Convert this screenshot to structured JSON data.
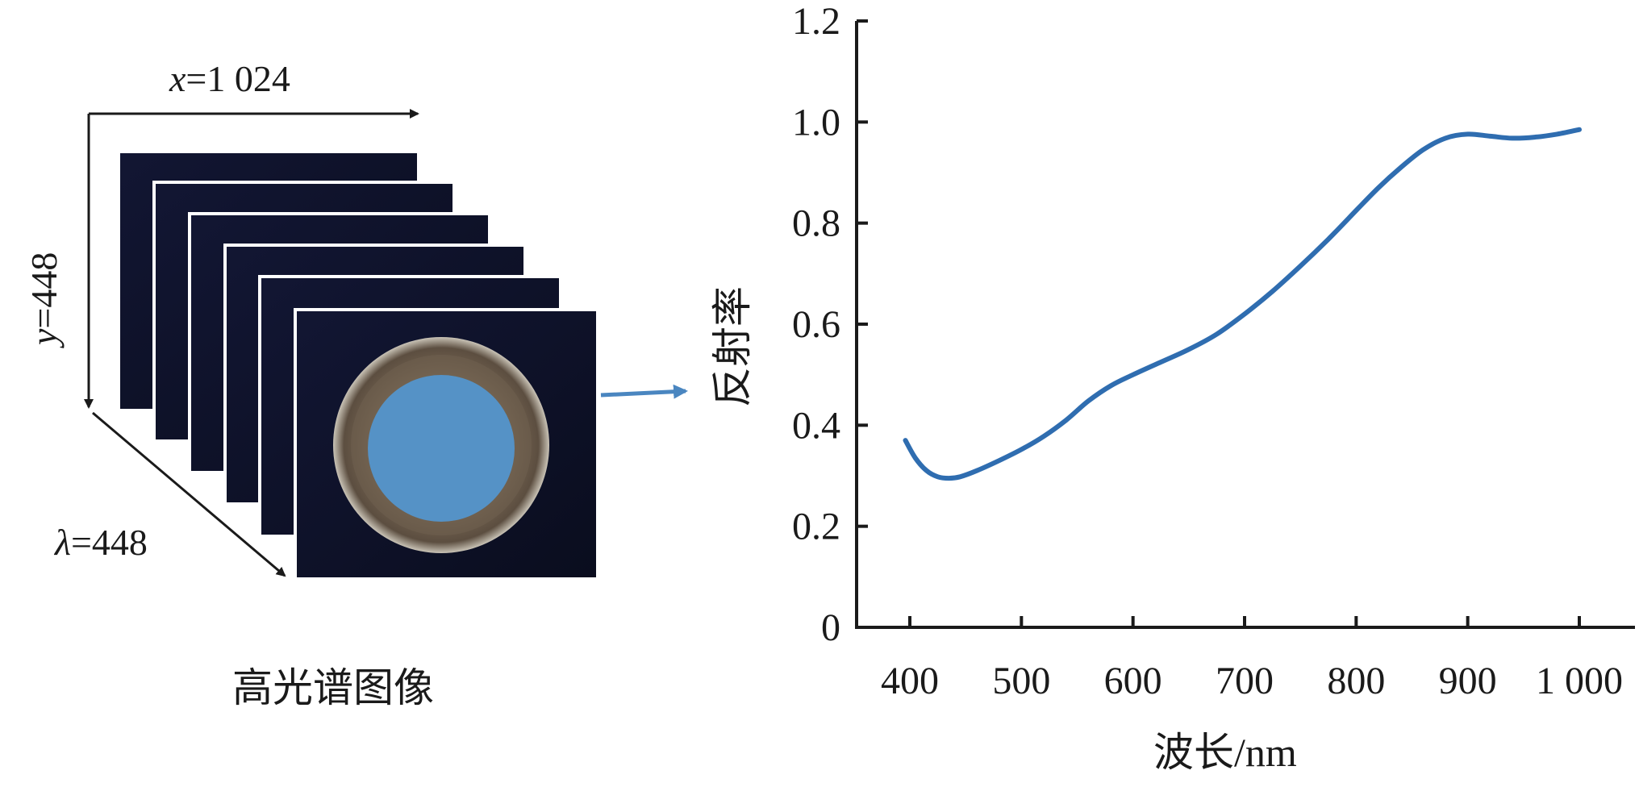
{
  "diagram": {
    "x_label_var": "x",
    "x_label_value": "=1 024",
    "y_label_var": "y",
    "y_label_value": "=448",
    "lambda_label_var": "λ",
    "lambda_label_value": "=448",
    "caption": "高光谱图像",
    "colors": {
      "frame": "#0c0f22",
      "ring": "#6e5f4e",
      "ring_edge": "#c8c2b4",
      "center": "#5592c6",
      "arrow": "#4a86c0"
    }
  },
  "chart_data": {
    "type": "line",
    "xlabel": "波长/nm",
    "ylabel": "反射率",
    "xlim": [
      350,
      1050
    ],
    "ylim": [
      0,
      1.2
    ],
    "x_ticks": [
      400,
      500,
      600,
      700,
      800,
      900,
      1000
    ],
    "x_tick_labels": [
      "400",
      "500",
      "600",
      "700",
      "800",
      "900",
      "1 000"
    ],
    "y_ticks": [
      0,
      0.2,
      0.4,
      0.6,
      0.8,
      1.0,
      1.2
    ],
    "y_tick_labels": [
      "0",
      "0.2",
      "0.4",
      "0.6",
      "0.8",
      "1.0",
      "1.2"
    ],
    "grid": false,
    "series": [
      {
        "color": "#2f6db0",
        "x": [
          396,
          405,
          415,
          425,
          435,
          445,
          460,
          480,
          500,
          520,
          540,
          560,
          580,
          600,
          625,
          650,
          675,
          700,
          725,
          750,
          775,
          800,
          820,
          840,
          860,
          880,
          900,
          920,
          940,
          960,
          980,
          1000
        ],
        "y": [
          0.37,
          0.335,
          0.31,
          0.298,
          0.295,
          0.298,
          0.31,
          0.33,
          0.352,
          0.378,
          0.41,
          0.448,
          0.478,
          0.5,
          0.525,
          0.55,
          0.58,
          0.62,
          0.665,
          0.715,
          0.768,
          0.825,
          0.87,
          0.91,
          0.945,
          0.968,
          0.976,
          0.972,
          0.968,
          0.97,
          0.976,
          0.985
        ]
      }
    ]
  }
}
